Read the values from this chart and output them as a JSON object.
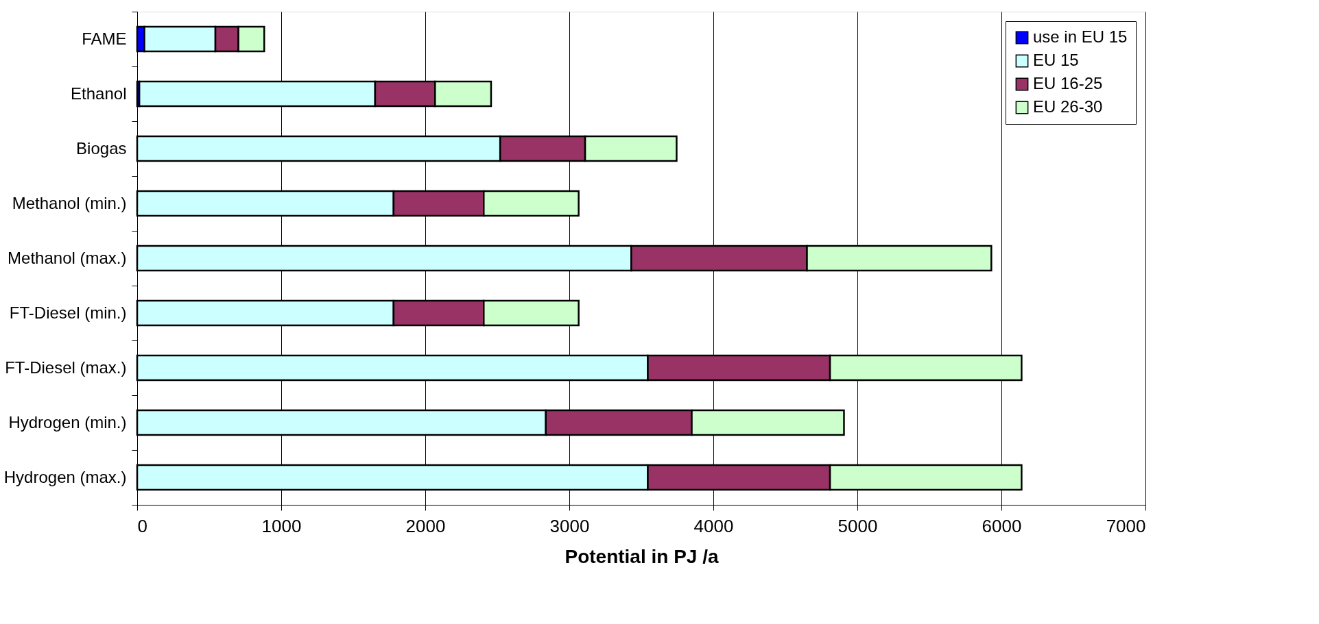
{
  "chart_data": {
    "type": "bar",
    "orientation": "horizontal",
    "stacked": true,
    "xlabel": "Potential in PJ /a",
    "categories": [
      "FAME",
      "Ethanol",
      "Biogas",
      "Methanol (min.)",
      "Methanol (max.)",
      "FT-Diesel (min.)",
      "FT-Diesel (max.)",
      "Hydrogen (min.)",
      "Hydrogen (max.)"
    ],
    "series": [
      {
        "name": "use in EU 15",
        "color": "#0000ff",
        "values": [
          50,
          15,
          null,
          null,
          null,
          null,
          null,
          null,
          null
        ]
      },
      {
        "name": "EU 15",
        "color": "#ccffff",
        "values": [
          493,
          1637,
          2520,
          1780,
          3430,
          1780,
          3545,
          2837,
          3545
        ]
      },
      {
        "name": "EU 16-25",
        "color": "#993366",
        "values": [
          160,
          416,
          590,
          626,
          1220,
          626,
          1265,
          1013,
          1265
        ]
      },
      {
        "name": "EU 26-30",
        "color": "#ccffcc",
        "values": [
          179,
          389,
          635,
          659,
          1280,
          659,
          1330,
          1057,
          1330
        ]
      }
    ],
    "xlim": [
      0,
      7000
    ],
    "xticks": [
      0,
      1000,
      2000,
      3000,
      4000,
      5000,
      6000,
      7000
    ],
    "grid": "x",
    "legend": "top right"
  }
}
